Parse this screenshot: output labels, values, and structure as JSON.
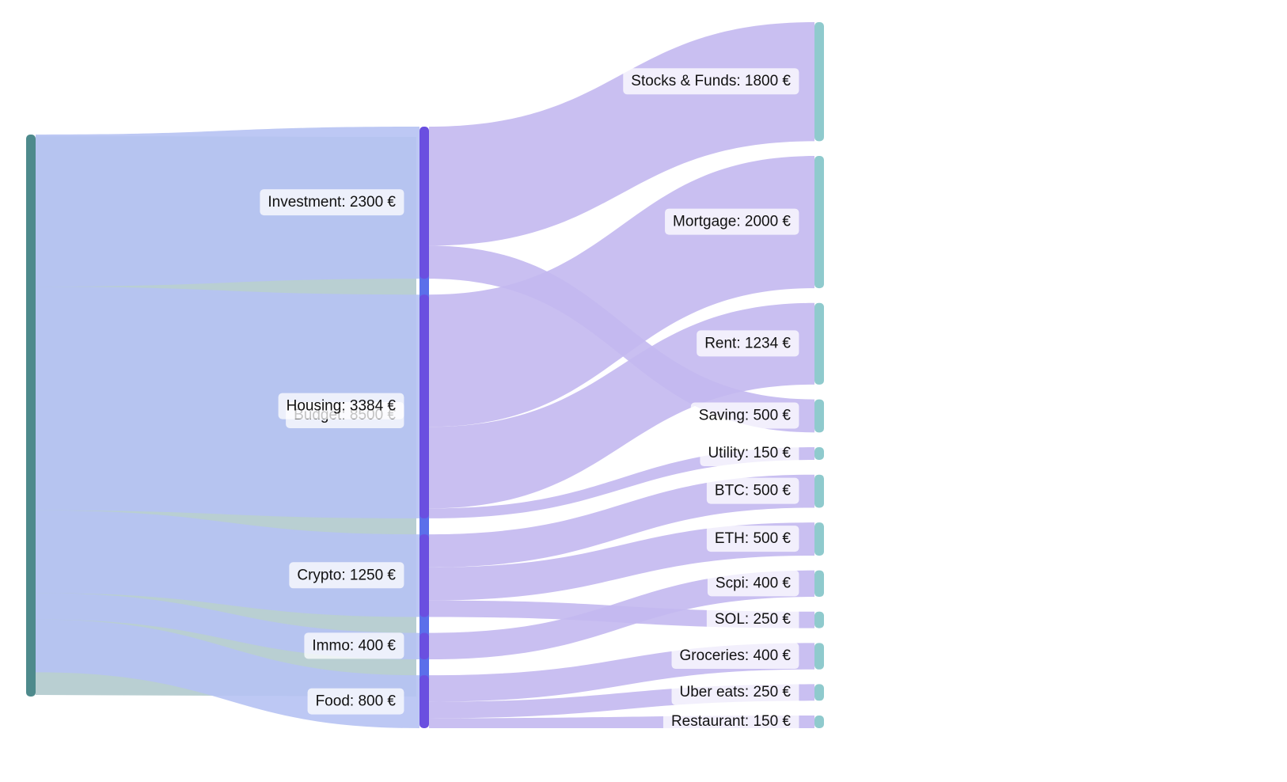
{
  "chart_data": {
    "type": "sankey",
    "unit": "€",
    "nodes": [
      {
        "id": "budget",
        "label": "Budget: 8500 €",
        "value": 8500,
        "column": 0
      },
      {
        "id": "investment",
        "label": "Investment: 2300 €",
        "value": 2300,
        "column": 1
      },
      {
        "id": "housing",
        "label": "Housing: 3384 €",
        "value": 3384,
        "column": 1
      },
      {
        "id": "crypto",
        "label": "Crypto: 1250 €",
        "value": 1250,
        "column": 1
      },
      {
        "id": "immo",
        "label": "Immo: 400 €",
        "value": 400,
        "column": 1
      },
      {
        "id": "food",
        "label": "Food: 800 €",
        "value": 800,
        "column": 1
      },
      {
        "id": "stocks",
        "label": "Stocks & Funds: 1800 €",
        "value": 1800,
        "column": 2
      },
      {
        "id": "mortgage",
        "label": "Mortgage: 2000 €",
        "value": 2000,
        "column": 2
      },
      {
        "id": "rent",
        "label": "Rent: 1234 €",
        "value": 1234,
        "column": 2
      },
      {
        "id": "saving",
        "label": "Saving: 500 €",
        "value": 500,
        "column": 2
      },
      {
        "id": "utility",
        "label": "Utility: 150 €",
        "value": 150,
        "column": 2
      },
      {
        "id": "btc",
        "label": "BTC: 500 €",
        "value": 500,
        "column": 2
      },
      {
        "id": "eth",
        "label": "ETH: 500 €",
        "value": 500,
        "column": 2
      },
      {
        "id": "scpi",
        "label": "Scpi: 400 €",
        "value": 400,
        "column": 2
      },
      {
        "id": "sol",
        "label": "SOL: 250 €",
        "value": 250,
        "column": 2
      },
      {
        "id": "groceries",
        "label": "Groceries: 400 €",
        "value": 400,
        "column": 2
      },
      {
        "id": "ubereats",
        "label": "Uber eats: 250 €",
        "value": 250,
        "column": 2
      },
      {
        "id": "restaurant",
        "label": "Restaurant: 150 €",
        "value": 150,
        "column": 2
      }
    ],
    "links": [
      {
        "source": "budget",
        "target": "investment",
        "value": 2300
      },
      {
        "source": "budget",
        "target": "housing",
        "value": 3384
      },
      {
        "source": "budget",
        "target": "crypto",
        "value": 1250
      },
      {
        "source": "budget",
        "target": "immo",
        "value": 400
      },
      {
        "source": "budget",
        "target": "food",
        "value": 800
      },
      {
        "source": "investment",
        "target": "stocks",
        "value": 1800
      },
      {
        "source": "investment",
        "target": "saving",
        "value": 500
      },
      {
        "source": "housing",
        "target": "rent",
        "value": 1234
      },
      {
        "source": "housing",
        "target": "mortgage",
        "value": 2000
      },
      {
        "source": "housing",
        "target": "utility",
        "value": 150
      },
      {
        "source": "crypto",
        "target": "btc",
        "value": 500
      },
      {
        "source": "crypto",
        "target": "eth",
        "value": 500
      },
      {
        "source": "crypto",
        "target": "sol",
        "value": 250
      },
      {
        "source": "immo",
        "target": "scpi",
        "value": 400
      },
      {
        "source": "food",
        "target": "groceries",
        "value": 400
      },
      {
        "source": "food",
        "target": "ubereats",
        "value": 250
      },
      {
        "source": "food",
        "target": "restaurant",
        "value": 150
      }
    ],
    "colors": {
      "column_0_node": "#4e8a8c",
      "column_1_node": "#5b6fea",
      "column_1_node_alt": "#6a4fe0",
      "column_2_node": "#8fcacd",
      "link_from_budget": "#b9cfd2",
      "link_from_level1": "#b6c2f3",
      "link_from_level2": "#c3b8ef",
      "link_overlap": "#9a8ae6",
      "label_background": "#ffffff"
    }
  }
}
